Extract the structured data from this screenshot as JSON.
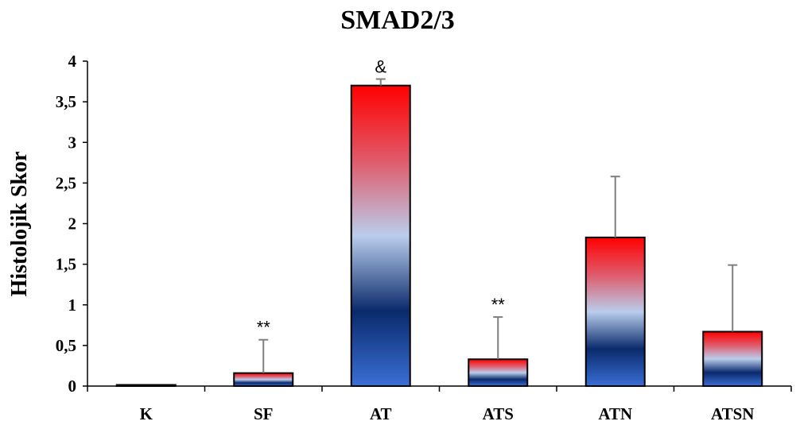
{
  "chart_data": {
    "type": "bar",
    "title": "SMAD2/3",
    "xlabel": "",
    "ylabel": "Histolojik Skor",
    "categories": [
      "K",
      "SF",
      "AT",
      "ATS",
      "ATN",
      "ATSN"
    ],
    "values": [
      0,
      0.16,
      3.7,
      0.33,
      1.83,
      0.67
    ],
    "error": [
      0,
      0.41,
      0.08,
      0.52,
      0.75,
      0.82
    ],
    "annotations": [
      "",
      "**",
      "&",
      "**",
      "",
      ""
    ],
    "ylim": [
      0,
      4
    ],
    "yticks": [
      "0",
      "0,5",
      "1",
      "1,5",
      "2",
      "2,5",
      "3",
      "3,5",
      "4"
    ],
    "yticks_values": [
      0,
      0.5,
      1,
      1.5,
      2,
      2.5,
      3,
      3.5,
      4
    ],
    "grid": false,
    "legend": "none",
    "colors": {
      "gradient_top": "#ff0000",
      "gradient_mid_light": "#b9cdec",
      "gradient_mid_dark": "#0a2a6b",
      "gradient_bottom": "#3a6fd6",
      "outline": "#000000",
      "error_bar": "#7f7f7f"
    }
  }
}
